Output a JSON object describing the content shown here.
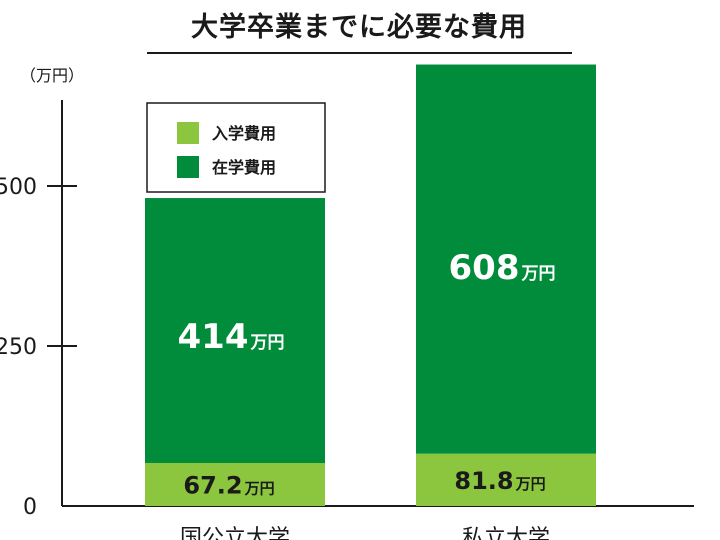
{
  "chart_data": {
    "type": "bar",
    "stacked": true,
    "title": "大学卒業までに必要な費用",
    "ylabel": "（万円）",
    "y_ticks": [
      "0",
      "250",
      "500"
    ],
    "y_tick_labels_visible": [
      "0",
      "250",
      "500"
    ],
    "ylim": [
      0,
      650
    ],
    "categories": [
      "国公立大学",
      "私立大学"
    ],
    "series": [
      {
        "name": "入学費用",
        "color": "#8cc63f",
        "values": [
          67.2,
          81.8
        ],
        "labels": [
          "67.2",
          "81.8"
        ]
      },
      {
        "name": "在学費用",
        "color": "#008c3a",
        "values": [
          414,
          608
        ],
        "labels": [
          "414",
          "608"
        ]
      }
    ],
    "value_unit": "万円",
    "legend_position": "top-left",
    "grid": false
  }
}
